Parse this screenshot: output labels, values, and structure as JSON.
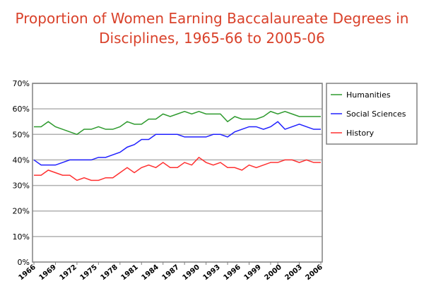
{
  "chart_data": {
    "type": "line",
    "title_line1": "Proportion of Women Earning Baccalaureate Degrees in",
    "title_line2": "Disciplines, 1965-66 to 2005-06",
    "x": [
      1966,
      1967,
      1968,
      1969,
      1970,
      1971,
      1972,
      1973,
      1974,
      1975,
      1976,
      1977,
      1978,
      1979,
      1980,
      1981,
      1982,
      1983,
      1984,
      1985,
      1986,
      1987,
      1988,
      1989,
      1990,
      1991,
      1992,
      1993,
      1994,
      1995,
      1996,
      1997,
      1998,
      1999,
      2000,
      2001,
      2002,
      2003,
      2004,
      2005,
      2006
    ],
    "xticks": [
      "1966",
      "1969",
      "1972",
      "1975",
      "1978",
      "1981",
      "1984",
      "1987",
      "1990",
      "1993",
      "1996",
      "1999",
      "2000",
      "2003",
      "2006"
    ],
    "xtick_values": [
      1966,
      1969,
      1972,
      1975,
      1978,
      1981,
      1984,
      1987,
      1990,
      1993,
      1996,
      1999,
      2000,
      2003,
      2006
    ],
    "yticks": [
      "0%",
      "10%",
      "20%",
      "30%",
      "40%",
      "50%",
      "60%",
      "70%"
    ],
    "ylim": [
      0,
      70
    ],
    "grid": true,
    "legend_position": "right",
    "series": [
      {
        "name": "Humanities",
        "color": "#2e9a2e",
        "values": [
          53,
          53,
          55,
          53,
          52,
          51,
          50,
          52,
          52,
          53,
          52,
          52,
          53,
          55,
          54,
          54,
          56,
          56,
          58,
          57,
          58,
          59,
          58,
          59,
          58,
          58,
          58,
          55,
          57,
          56,
          56,
          56,
          57,
          59,
          58,
          59,
          58,
          57,
          57,
          57,
          57
        ]
      },
      {
        "name": "Social Sciences",
        "color": "#2020ff",
        "values": [
          40,
          38,
          38,
          38,
          39,
          40,
          40,
          40,
          40,
          41,
          41,
          42,
          43,
          45,
          46,
          48,
          48,
          50,
          50,
          50,
          50,
          49,
          49,
          49,
          49,
          50,
          50,
          49,
          51,
          52,
          53,
          53,
          52,
          53,
          55,
          52,
          53,
          54,
          53,
          52,
          52
        ]
      },
      {
        "name": "History",
        "color": "#ff3030",
        "values": [
          34,
          34,
          36,
          35,
          34,
          34,
          32,
          33,
          32,
          32,
          33,
          33,
          35,
          37,
          35,
          37,
          38,
          37,
          39,
          37,
          37,
          39,
          38,
          41,
          39,
          38,
          39,
          37,
          37,
          36,
          38,
          37,
          38,
          39,
          39,
          40,
          40,
          39,
          40,
          39,
          39
        ]
      }
    ]
  }
}
